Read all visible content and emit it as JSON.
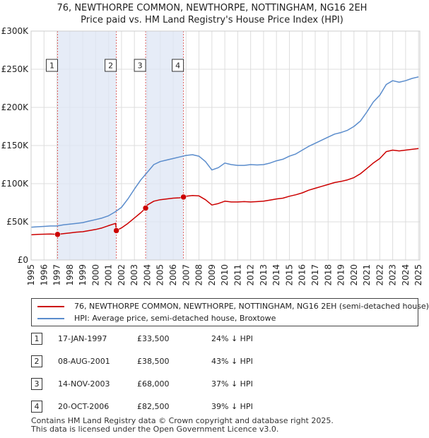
{
  "title_line1": "76, NEWTHORPE COMMON, NEWTHORPE, NOTTINGHAM, NG16 2EH",
  "title_line2": "Price paid vs. HM Land Registry's House Price Index (HPI)",
  "colors": {
    "property": "#cc0000",
    "hpi": "#5a8ccc",
    "shade": "#dde6f4",
    "marker_line": "#e06060"
  },
  "legend": {
    "property_label": "76, NEWTHORPE COMMON, NEWTHORPE, NOTTINGHAM, NG16 2EH (semi-detached house)",
    "hpi_label": "HPI: Average price, semi-detached house, Broxtowe"
  },
  "sales": [
    {
      "num": "1",
      "date": "17-JAN-1997",
      "price": "£33,500",
      "hpi": "24% ↓ HPI"
    },
    {
      "num": "2",
      "date": "08-AUG-2001",
      "price": "£38,500",
      "hpi": "43% ↓ HPI"
    },
    {
      "num": "3",
      "date": "14-NOV-2003",
      "price": "£68,000",
      "hpi": "37% ↓ HPI"
    },
    {
      "num": "4",
      "date": "20-OCT-2006",
      "price": "£82,500",
      "hpi": "39% ↓ HPI"
    }
  ],
  "footer_line1": "Contains HM Land Registry data © Crown copyright and database right 2025.",
  "footer_line2": "This data is licensed under the Open Government Licence v3.0.",
  "chart_data": {
    "type": "line",
    "title": "76, NEWTHORPE COMMON, NEWTHORPE, NOTTINGHAM, NG16 2EH — Price paid vs. HM Land Registry's House Price Index (HPI)",
    "xlabel": "",
    "ylabel": "",
    "xlim": [
      1995.0,
      2025.1
    ],
    "ylim": [
      0,
      300000
    ],
    "grid": true,
    "legend_position": "bottom",
    "x_ticks": [
      "1995",
      "1996",
      "1997",
      "1998",
      "1999",
      "2000",
      "2001",
      "2002",
      "2003",
      "2004",
      "2005",
      "2006",
      "2007",
      "2008",
      "2009",
      "2010",
      "2011",
      "2012",
      "2013",
      "2014",
      "2015",
      "2016",
      "2017",
      "2018",
      "2019",
      "2020",
      "2021",
      "2022",
      "2023",
      "2024",
      "2025"
    ],
    "y_ticks": [
      {
        "value": 0,
        "label": "£0"
      },
      {
        "value": 50000,
        "label": "£50K"
      },
      {
        "value": 100000,
        "label": "£100K"
      },
      {
        "value": 150000,
        "label": "£150K"
      },
      {
        "value": 200000,
        "label": "£200K"
      },
      {
        "value": 250000,
        "label": "£250K"
      },
      {
        "value": 300000,
        "label": "£300K"
      }
    ],
    "series": [
      {
        "name": "HPI: Average price, semi-detached house, Broxtowe",
        "x": [
          1995.0,
          1995.5,
          1996.0,
          1996.5,
          1997.0,
          1997.5,
          1998.0,
          1998.5,
          1999.0,
          1999.5,
          2000.0,
          2000.5,
          2001.0,
          2001.5,
          2002.0,
          2002.5,
          2003.0,
          2003.5,
          2004.0,
          2004.5,
          2005.0,
          2005.5,
          2006.0,
          2006.5,
          2007.0,
          2007.5,
          2008.0,
          2008.5,
          2009.0,
          2009.5,
          2010.0,
          2010.5,
          2011.0,
          2011.5,
          2012.0,
          2012.5,
          2013.0,
          2013.5,
          2014.0,
          2014.5,
          2015.0,
          2015.5,
          2016.0,
          2016.5,
          2017.0,
          2017.5,
          2018.0,
          2018.5,
          2019.0,
          2019.5,
          2020.0,
          2020.5,
          2021.0,
          2021.5,
          2022.0,
          2022.5,
          2023.0,
          2023.5,
          2024.0,
          2024.5,
          2025.0
        ],
        "values": [
          43000,
          43500,
          44000,
          44500,
          44500,
          46000,
          47000,
          48000,
          49000,
          51000,
          53000,
          55000,
          58000,
          63000,
          69000,
          80000,
          93000,
          105000,
          115000,
          125000,
          129000,
          131000,
          133000,
          135000,
          137000,
          138000,
          136000,
          129000,
          118000,
          121000,
          127000,
          125000,
          124000,
          124000,
          125000,
          124500,
          125000,
          127000,
          130000,
          132000,
          136000,
          139000,
          144000,
          149000,
          153000,
          157000,
          161000,
          165000,
          167000,
          170000,
          175000,
          182000,
          194000,
          207000,
          216000,
          230000,
          235000,
          233000,
          235000,
          238000,
          240000
        ]
      },
      {
        "name": "76, NEWTHORPE COMMON, NEWTHORPE, NOTTINGHAM, NG16 2EH (semi-detached house)",
        "x": [
          1995.0,
          1995.5,
          1996.0,
          1996.5,
          1997.05,
          1997.5,
          1998.0,
          1998.5,
          1999.0,
          1999.5,
          2000.0,
          2000.5,
          2001.0,
          2001.55,
          2001.6,
          2002.0,
          2002.5,
          2003.0,
          2003.5,
          2003.87,
          2004.0,
          2004.5,
          2005.0,
          2005.5,
          2006.0,
          2006.5,
          2006.8,
          2007.0,
          2007.5,
          2008.0,
          2008.5,
          2009.0,
          2009.5,
          2010.0,
          2010.5,
          2011.0,
          2011.5,
          2012.0,
          2012.5,
          2013.0,
          2013.5,
          2014.0,
          2014.5,
          2015.0,
          2015.5,
          2016.0,
          2016.5,
          2017.0,
          2017.5,
          2018.0,
          2018.5,
          2019.0,
          2019.5,
          2020.0,
          2020.5,
          2021.0,
          2021.5,
          2022.0,
          2022.5,
          2023.0,
          2023.5,
          2024.0,
          2024.5,
          2025.0
        ],
        "values": [
          33000,
          33500,
          33800,
          34000,
          33500,
          34500,
          35500,
          36500,
          37000,
          38500,
          40000,
          42000,
          45000,
          48000,
          38500,
          42000,
          48000,
          55000,
          62000,
          68000,
          72000,
          77000,
          79000,
          80000,
          81000,
          81500,
          82500,
          83500,
          84500,
          84000,
          79000,
          72000,
          74000,
          77000,
          76000,
          76000,
          76500,
          76000,
          76500,
          77000,
          78500,
          80000,
          81000,
          83500,
          85500,
          88000,
          91500,
          94000,
          96500,
          99000,
          101500,
          103000,
          105000,
          108000,
          113000,
          120000,
          127000,
          133000,
          142000,
          144000,
          143000,
          144000,
          145000,
          146000
        ]
      }
    ],
    "sales": [
      {
        "label": "1",
        "x": 1997.05,
        "value": 33500
      },
      {
        "label": "2",
        "x": 2001.6,
        "value": 38500
      },
      {
        "label": "3",
        "x": 2003.87,
        "value": 68000
      },
      {
        "label": "4",
        "x": 2006.8,
        "value": 82500
      }
    ]
  }
}
